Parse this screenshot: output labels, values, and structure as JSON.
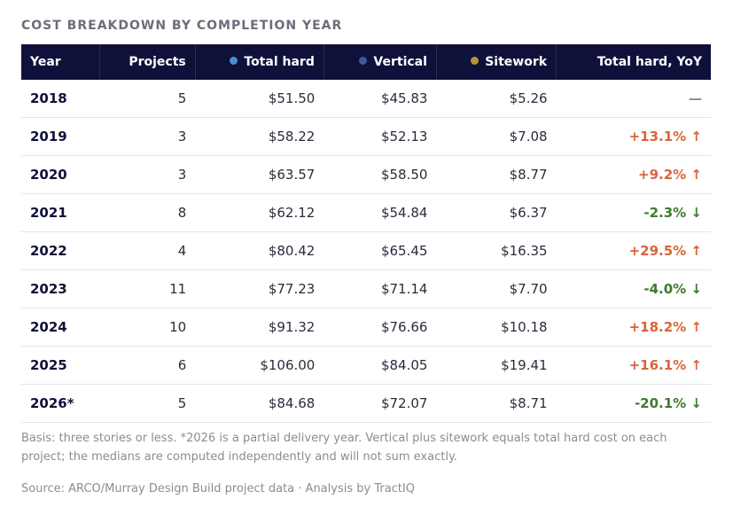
{
  "header": {
    "title": "COST BREAKDOWN BY COMPLETION YEAR"
  },
  "table": {
    "columns": [
      "Year",
      "Projects",
      "Total hard",
      "Vertical",
      "Sitework",
      "Total hard, YoY"
    ],
    "rows": [
      [
        "2018",
        "5",
        "$51.50",
        "$45.83",
        "$5.26",
        "—"
      ],
      [
        "2019",
        "3",
        "$58.22",
        "$52.13",
        "$7.08",
        "+13.1% ↑"
      ],
      [
        "2020",
        "3",
        "$63.57",
        "$58.50",
        "$8.77",
        "+9.2% ↑"
      ],
      [
        "2021",
        "8",
        "$62.12",
        "$54.84",
        "$6.37",
        "-2.3% ↓"
      ],
      [
        "2022",
        "4",
        "$80.42",
        "$65.45",
        "$16.35",
        "+29.5% ↑"
      ],
      [
        "2023",
        "11",
        "$77.23",
        "$71.14",
        "$7.70",
        "-4.0% ↓"
      ],
      [
        "2024",
        "10",
        "$91.32",
        "$76.66",
        "$10.18",
        "+18.2% ↑"
      ],
      [
        "2025",
        "6",
        "$106.00",
        "$84.05",
        "$19.41",
        "+16.1% ↑"
      ],
      [
        "2026*",
        "5",
        "$84.68",
        "$72.07",
        "$8.71",
        "-20.1% ↓"
      ]
    ]
  },
  "footer": {
    "note": "Basis: three stories or less. *2026 is a partial delivery year. Vertical plus sitework equals total hard cost on each project; the medians are computed independently and will not sum exactly.",
    "source": "Source: ARCO/Murray Design Build project data · Analysis by TractIQ"
  }
}
